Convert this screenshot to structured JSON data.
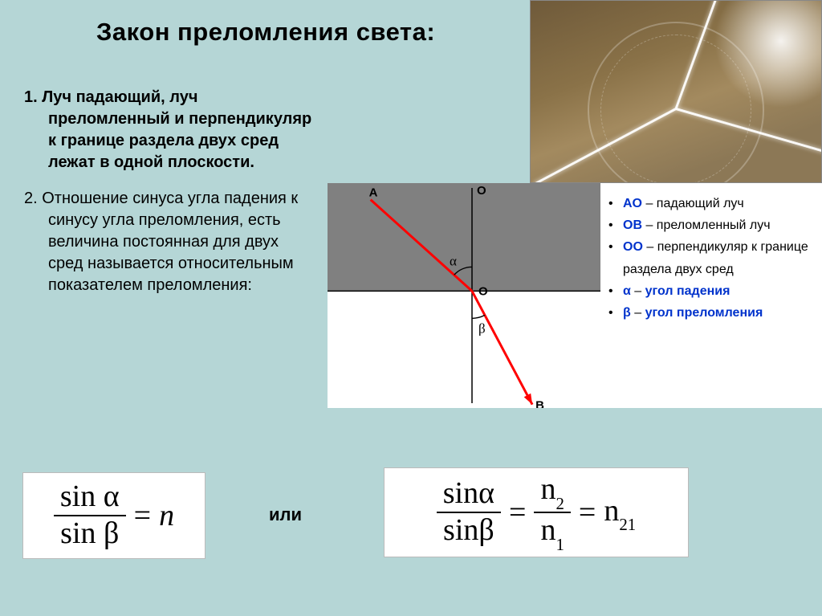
{
  "title": "Закон преломления света:",
  "list": {
    "item1_num": "1.",
    "item1": "Луч падающий, луч преломленный и перпендикуляр к границе раздела двух сред лежат в одной плоскости.",
    "item2_num": "2.",
    "item2": "Отношение синуса угла падения к синусу угла преломления, есть величина постоянная для двух сред называется относительным показателем преломления:"
  },
  "diagram": {
    "type": "refraction-ray",
    "background_top": "#808080",
    "background_bottom": "#ffffff",
    "ray_color": "#ff0000",
    "axis_color": "#000000",
    "interface_y": 0.48,
    "A_label": "A",
    "B_label": "B",
    "O_label": "O",
    "Otop_label": "O",
    "alpha_label": "α",
    "beta_label": "β",
    "alpha_deg": 48,
    "beta_deg": 28
  },
  "legend": [
    {
      "term": "AO",
      "dash": " – ",
      "desc": "падающий луч",
      "desc_blue": false
    },
    {
      "term": "OB",
      "dash": " – ",
      "desc": "преломленный луч",
      "desc_blue": false
    },
    {
      "term": "OO",
      "dash": " – ",
      "desc": "перпендикуляр к границе раздела двух сред",
      "desc_blue": false
    },
    {
      "term": "α",
      "dash": " –  ",
      "desc": "угол падения",
      "desc_blue": true
    },
    {
      "term": "β",
      "dash": " –  ",
      "desc": "угол преломления",
      "desc_blue": true
    }
  ],
  "formula1": {
    "num": "sin α",
    "den": "sin β",
    "eq": "=",
    "rhs": "n"
  },
  "or_label": "или",
  "formula2": {
    "num1": "sinα",
    "den1": "sinβ",
    "eq1": "=",
    "num2": "n",
    "num2_sub": "2",
    "den2": "n",
    "den2_sub": "1",
    "eq2": "=",
    "rhs": "n",
    "rhs_sub": "21"
  },
  "colors": {
    "page_bg": "#b5d6d6",
    "term_blue": "#0033cc",
    "ray_red": "#ff0000"
  },
  "typography": {
    "title_fontsize": 31,
    "body_fontsize": 20,
    "legend_fontsize": 16,
    "formula_fontsize": 38
  }
}
